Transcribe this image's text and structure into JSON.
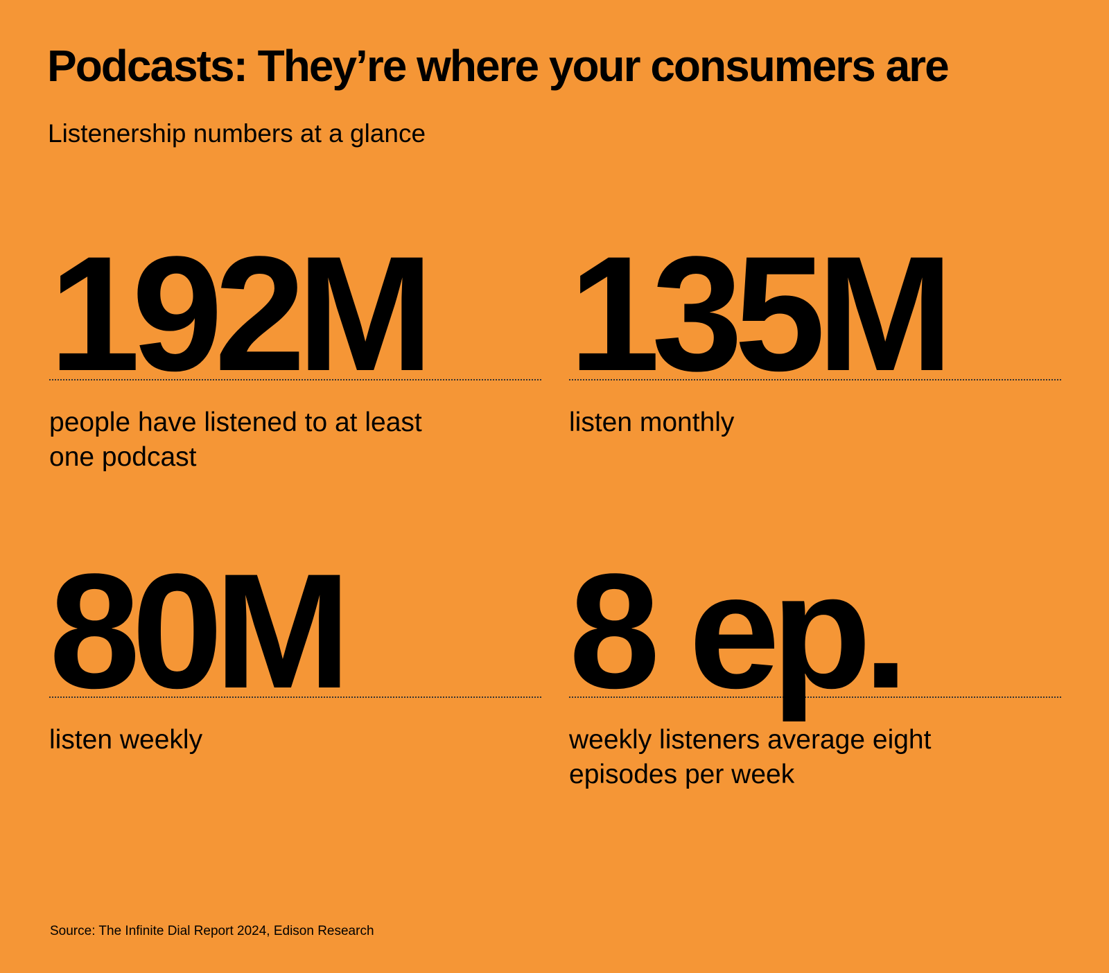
{
  "header": {
    "title": "Podcasts: They’re where your consumers are",
    "subtitle": "Listenership numbers at a glance"
  },
  "stats": [
    {
      "value": "192M",
      "description": "people have listened to at least one podcast"
    },
    {
      "value": "135M",
      "description": "listen monthly"
    },
    {
      "value": "80M",
      "description": "listen weekly"
    },
    {
      "value": "8 ep.",
      "description": "weekly listeners average eight episodes per week"
    }
  ],
  "source": "Source: The Infinite Dial Report 2024, Edison Research"
}
